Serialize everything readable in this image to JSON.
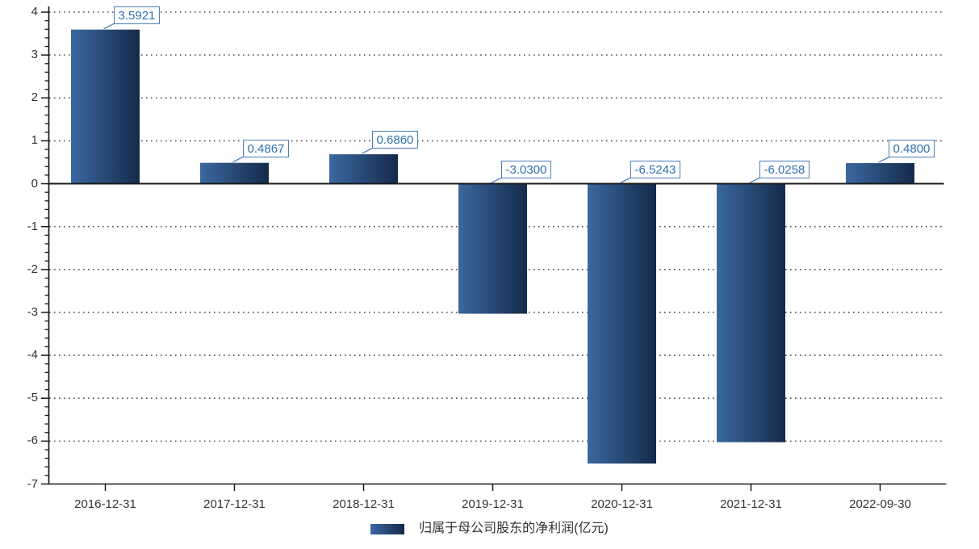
{
  "chart_data": {
    "type": "bar",
    "title": "",
    "categories": [
      "2016-12-31",
      "2017-12-31",
      "2018-12-31",
      "2019-12-31",
      "2020-12-31",
      "2021-12-31",
      "2022-09-30"
    ],
    "values": [
      3.5921,
      0.4867,
      0.686,
      -3.03,
      -6.5243,
      -6.0258,
      0.48
    ],
    "value_labels": [
      "3.5921",
      "0.4867",
      "0.6860",
      "-3.0300",
      "-6.5243",
      "-6.0258",
      "0.4800"
    ],
    "legend": "归属于母公司股东的净利润(亿元)",
    "xlabel": "",
    "ylabel": "",
    "ylim": [
      -7,
      4
    ],
    "y_ticks": [
      4,
      3,
      2,
      1,
      0,
      -1,
      -2,
      -3,
      -4,
      -5,
      -6,
      -7
    ],
    "minor_tick_step": 0.2,
    "grid": "horizontal dotted lines at integer ticks, solid line at 0 and -7",
    "legend_position": "bottom-center",
    "colors": {
      "bar_gradient_start": "#3a68a0",
      "bar_gradient_end": "#152a4b",
      "label_text": "#2e6fb0",
      "label_border": "#4a7db8",
      "axis_line": "#1a1a1a",
      "tick_label": "#333333",
      "grid_dot": "#4f4f4f",
      "background": "#ffffff"
    }
  }
}
